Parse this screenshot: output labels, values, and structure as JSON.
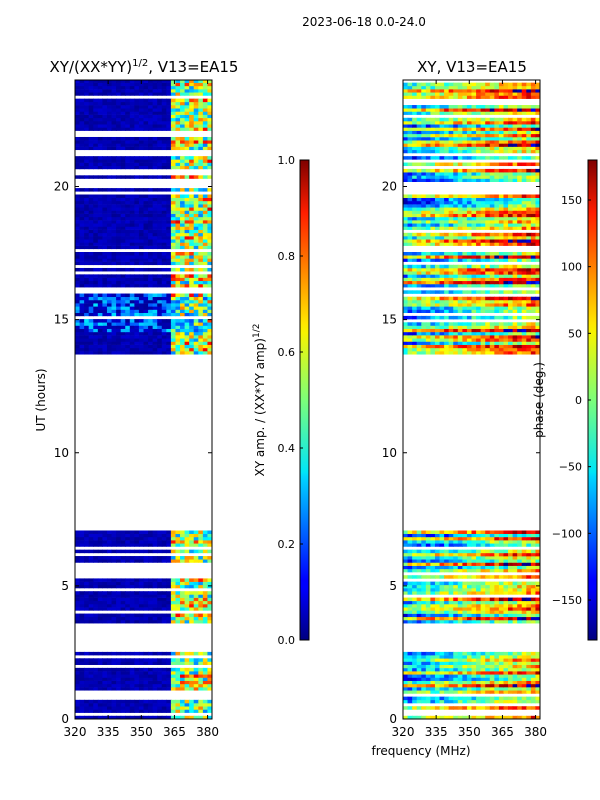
{
  "suptitle": "2023-06-18 0.0-24.0",
  "shared_xlabel": "frequency (MHz)",
  "chart_data": [
    {
      "type": "heatmap",
      "title_main": "XY/(XX*YY)",
      "title_exp": "1/2",
      "title_rest": ", V13=EA15",
      "ylabel": "UT (hours)",
      "xlim": [
        320,
        382
      ],
      "ylim": [
        0,
        24
      ],
      "xticks": [
        "320",
        "335",
        "350",
        "365",
        "380"
      ],
      "xtick_values": [
        320,
        335,
        350,
        365,
        380
      ],
      "yticks": [
        "0",
        "5",
        "10",
        "15",
        "20"
      ],
      "ytick_values": [
        0,
        5,
        10,
        15,
        20
      ],
      "data_bands_ut": [
        [
          0.0,
          2.5
        ],
        [
          3.6,
          7.0
        ],
        [
          13.7,
          24.0
        ]
      ],
      "colorbar": {
        "label_main": "XY amp. / (XX*YY amp)",
        "label_exp": "1/2",
        "range": [
          0.0,
          1.0
        ],
        "ticks": [
          "0.0",
          "0.2",
          "0.4",
          "0.6",
          "0.8",
          "1.0"
        ],
        "tick_values": [
          0.0,
          0.2,
          0.4,
          0.6,
          0.8,
          1.0
        ]
      }
    },
    {
      "type": "heatmap",
      "title": "XY, V13=EA15",
      "xlim": [
        320,
        382
      ],
      "ylim": [
        0,
        24
      ],
      "xticks": [
        "320",
        "335",
        "350",
        "365",
        "380"
      ],
      "xtick_values": [
        320,
        335,
        350,
        365,
        380
      ],
      "yticks": [
        "0",
        "5",
        "10",
        "15",
        "20"
      ],
      "ytick_values": [
        0,
        5,
        10,
        15,
        20
      ],
      "data_bands_ut": [
        [
          0.0,
          2.5
        ],
        [
          3.6,
          7.0
        ],
        [
          13.7,
          24.0
        ]
      ],
      "colorbar": {
        "label": "phase (deg.)",
        "range": [
          -180,
          180
        ],
        "ticks": [
          "−150",
          "−100",
          "−50",
          "0",
          "50",
          "100",
          "150"
        ],
        "tick_values": [
          -150,
          -100,
          -50,
          0,
          50,
          100,
          150
        ]
      }
    }
  ]
}
